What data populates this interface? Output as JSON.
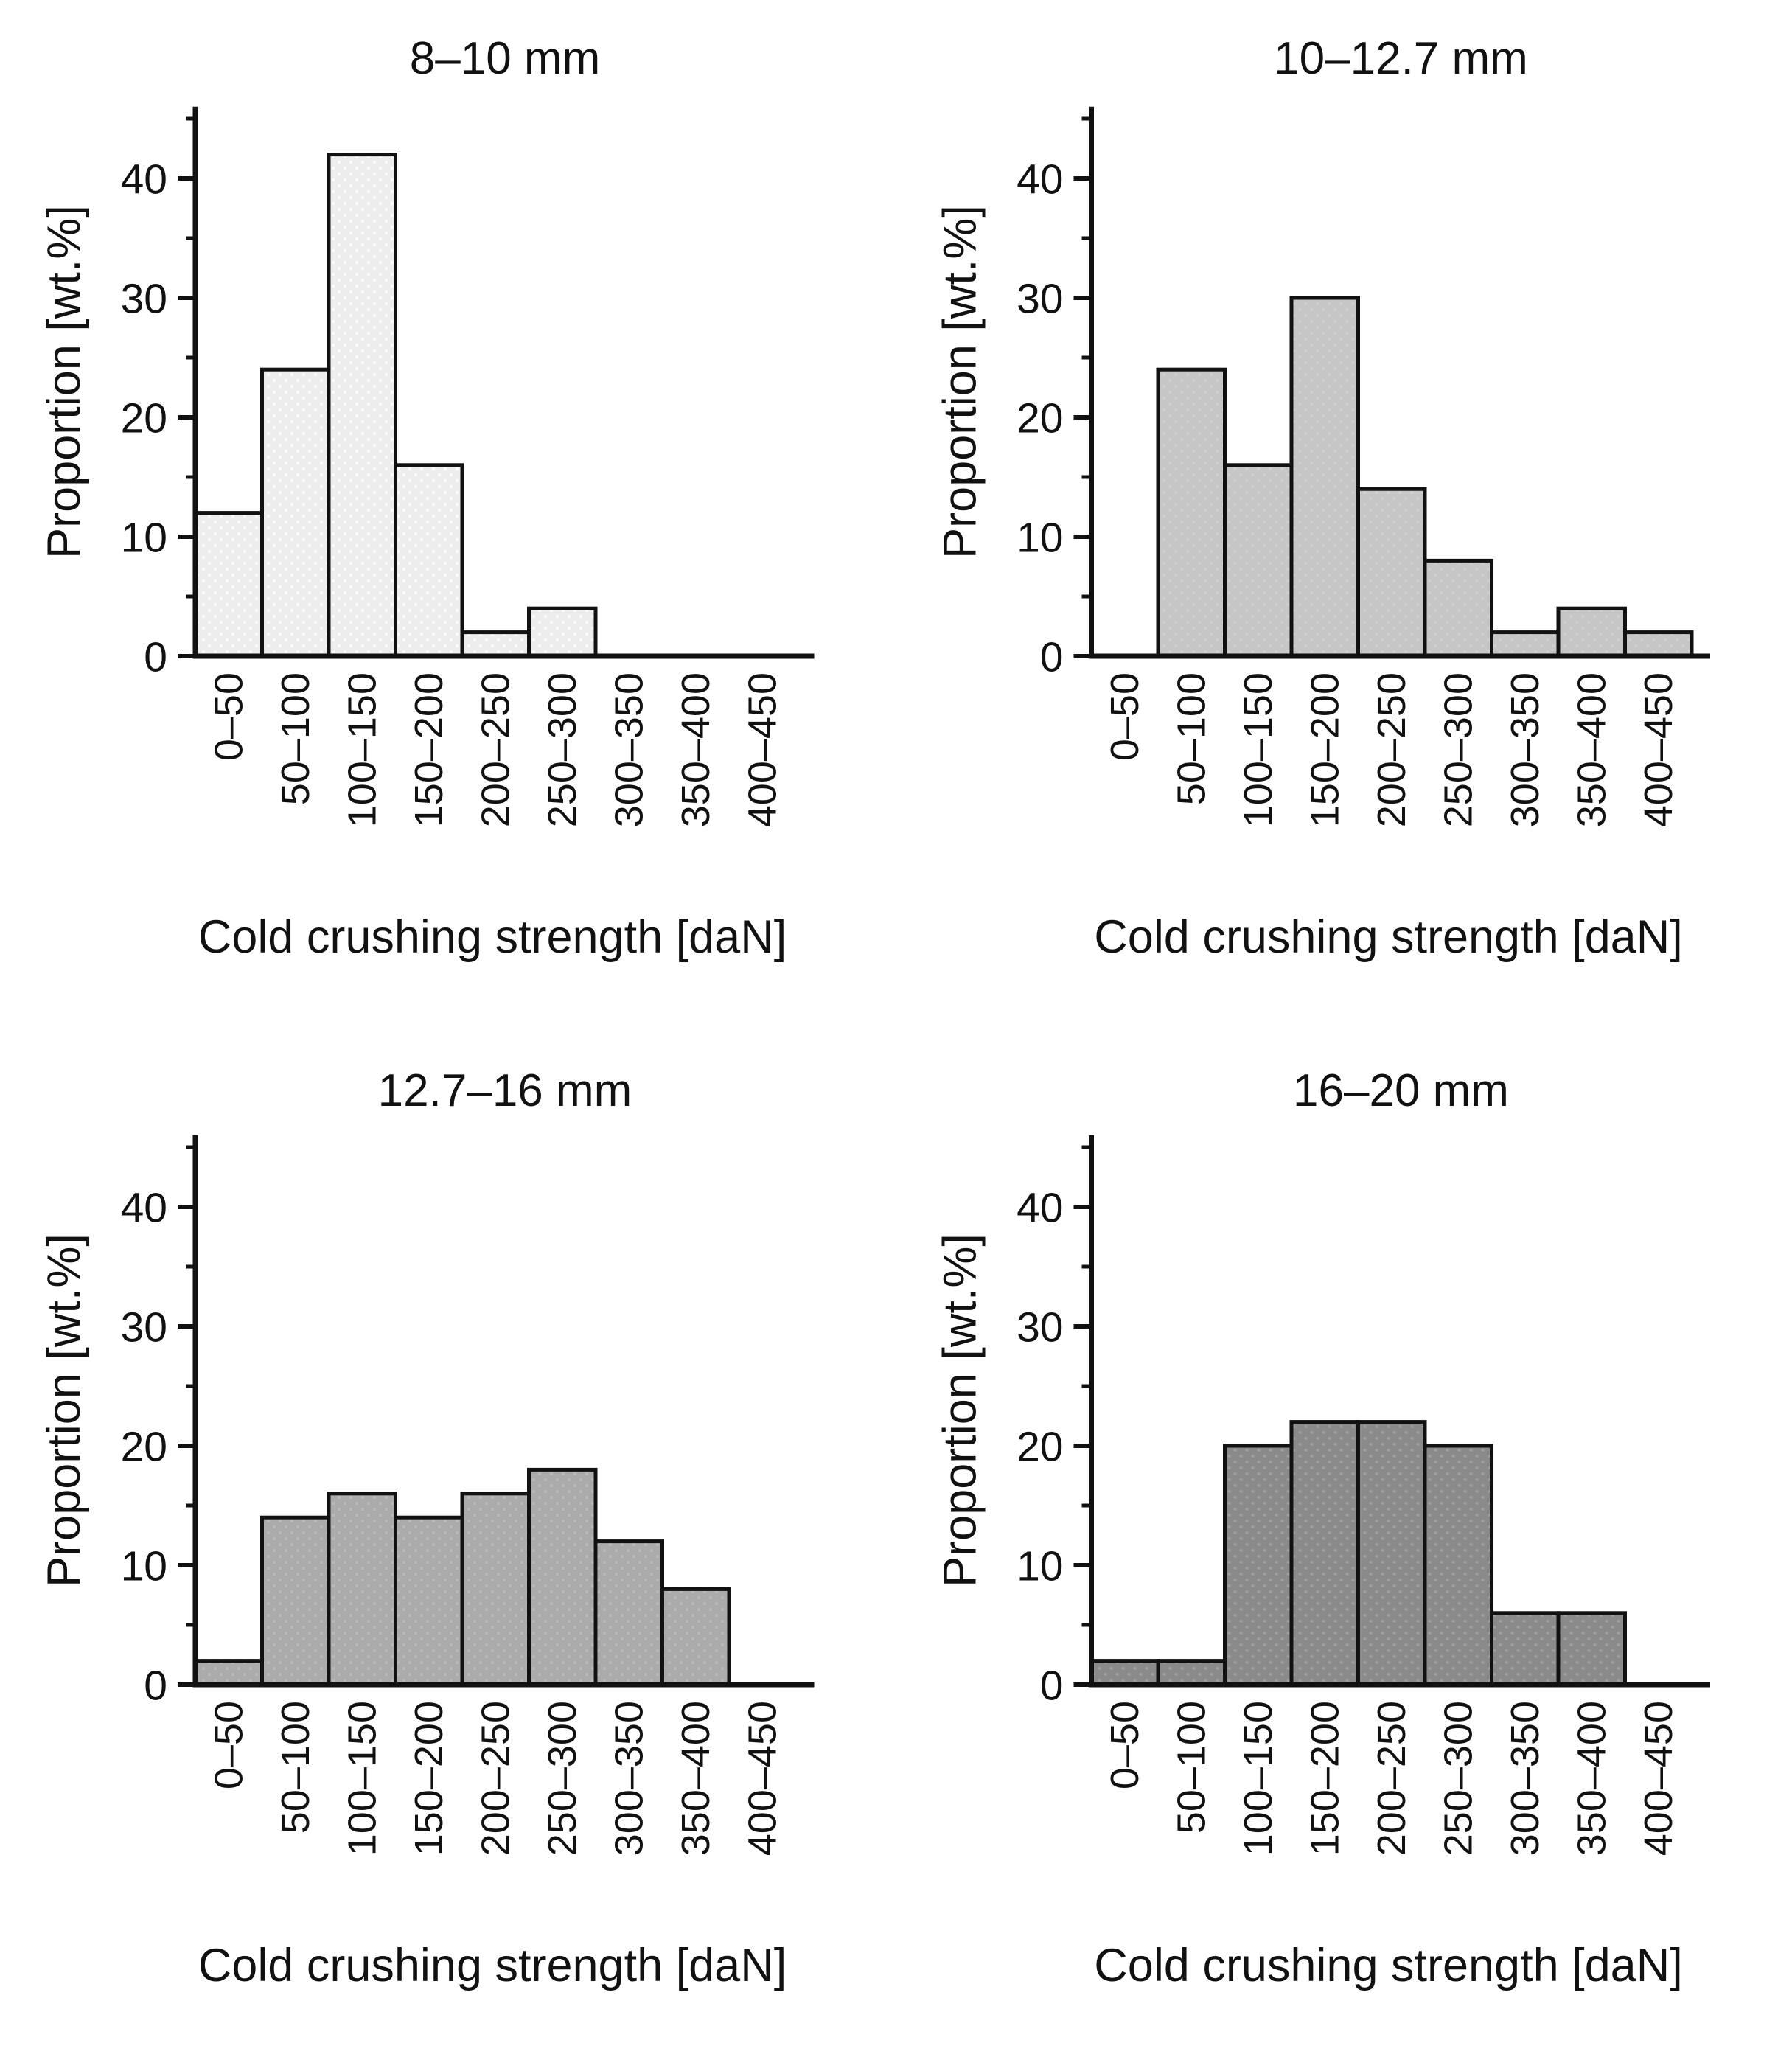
{
  "figure": {
    "background": "#ffffff",
    "text_color": "#111111",
    "axis_color": "#111111",
    "panel_count": 4
  },
  "chart_data": [
    {
      "type": "bar",
      "title": "8–10 mm",
      "xlabel": "Cold crushing strength [daN]",
      "ylabel": "Proportion [wt.%]",
      "categories": [
        "0–50",
        "50–100",
        "100–150",
        "150–200",
        "200–250",
        "250–300",
        "300–350",
        "350–400",
        "400–450"
      ],
      "values": [
        12,
        24,
        42,
        16,
        2,
        4,
        0,
        0,
        0
      ],
      "ylim": [
        0,
        46
      ],
      "yticks": [
        0,
        10,
        20,
        30,
        40
      ],
      "yticks_minor": [
        5,
        15,
        25,
        35,
        45
      ],
      "grid": false,
      "legend": null,
      "bar_fill": "#ededed",
      "bar_stroke": "#111111"
    },
    {
      "type": "bar",
      "title": "10–12.7 mm",
      "xlabel": "Cold crushing strength [daN]",
      "ylabel": "Proportion [wt.%]",
      "categories": [
        "0–50",
        "50–100",
        "100–150",
        "150–200",
        "200–250",
        "250–300",
        "300–350",
        "350–400",
        "400–450"
      ],
      "values": [
        0,
        24,
        16,
        30,
        14,
        8,
        2,
        4,
        2
      ],
      "ylim": [
        0,
        46
      ],
      "yticks": [
        0,
        10,
        20,
        30,
        40
      ],
      "yticks_minor": [
        5,
        15,
        25,
        35,
        45
      ],
      "grid": false,
      "legend": null,
      "bar_fill": "#c6c6c6",
      "bar_stroke": "#111111"
    },
    {
      "type": "bar",
      "title": "12.7–16 mm",
      "xlabel": "Cold crushing strength [daN]",
      "ylabel": "Proportion [wt.%]",
      "categories": [
        "0–50",
        "50–100",
        "100–150",
        "150–200",
        "200–250",
        "250–300",
        "300–350",
        "350–400",
        "400–450"
      ],
      "values": [
        2,
        14,
        16,
        14,
        16,
        18,
        12,
        8,
        0
      ],
      "ylim": [
        0,
        46
      ],
      "yticks": [
        0,
        10,
        20,
        30,
        40
      ],
      "yticks_minor": [
        5,
        15,
        25,
        35,
        45
      ],
      "grid": false,
      "legend": null,
      "bar_fill": "#ababab",
      "bar_stroke": "#111111"
    },
    {
      "type": "bar",
      "title": "16–20 mm",
      "xlabel": "Cold crushing strength [daN]",
      "ylabel": "Proportion [wt.%]",
      "categories": [
        "0–50",
        "50–100",
        "100–150",
        "150–200",
        "200–250",
        "250–300",
        "300–350",
        "350–400",
        "400–450"
      ],
      "values": [
        2,
        2,
        20,
        22,
        22,
        20,
        6,
        6,
        0
      ],
      "ylim": [
        0,
        46
      ],
      "yticks": [
        0,
        10,
        20,
        30,
        40
      ],
      "yticks_minor": [
        5,
        15,
        25,
        35,
        45
      ],
      "grid": false,
      "legend": null,
      "bar_fill": "#8a8a8a",
      "bar_stroke": "#111111"
    }
  ]
}
